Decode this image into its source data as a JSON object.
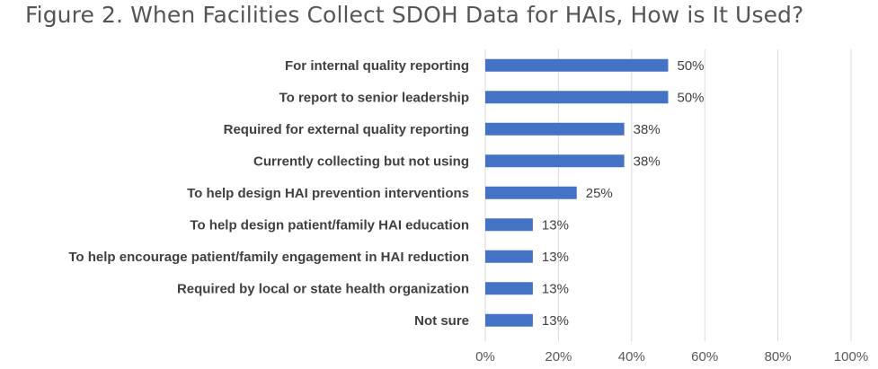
{
  "chart_data": {
    "type": "bar",
    "orientation": "horizontal",
    "title": "Figure 2. When Facilities Collect SDOH Data for HAIs, How is It Used?",
    "categories": [
      "For internal quality reporting",
      "To report to senior leadership",
      "Required for external quality reporting",
      "Currently collecting but not using",
      "To help design HAI prevention interventions",
      "To help design patient/family HAI education",
      "To help encourage patient/family engagement in HAI reduction",
      "Required by local or state health organization",
      "Not sure"
    ],
    "values": [
      50,
      50,
      38,
      38,
      25,
      13,
      13,
      13,
      13
    ],
    "value_labels": [
      "50%",
      "50%",
      "38%",
      "38%",
      "25%",
      "13%",
      "13%",
      "13%",
      "13%"
    ],
    "xticks": [
      "0%",
      "20%",
      "40%",
      "60%",
      "80%",
      "100%"
    ],
    "xlim": [
      0,
      100
    ],
    "grid": true,
    "bar_color": "#4472c4"
  }
}
